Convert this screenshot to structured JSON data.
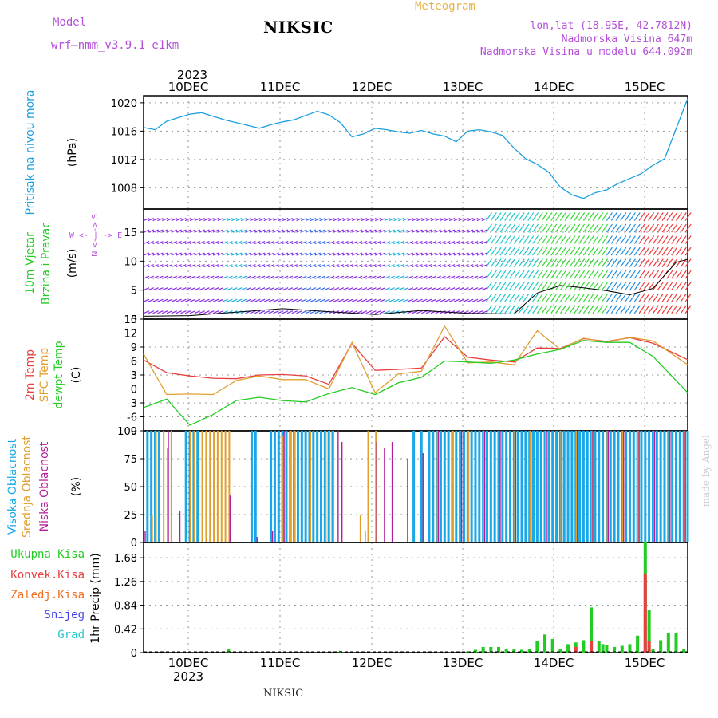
{
  "header": {
    "model_label": "Model",
    "model_name": "wrf–nmm_v3.9.1  e1km",
    "station": "NIKSIC",
    "meteogram": "Meteogram",
    "coords": "lon,lat (18.95E, 42.7812N)",
    "altitude": "Nadmorska Visina 647m",
    "model_altitude": "Nadmorska Visina u modelu 644.092m",
    "footer_station": "NIKSIC",
    "credit": "made by Angel"
  },
  "colors": {
    "pressure": "#1ca0e0",
    "temp2m": "#e84040",
    "sfctemp": "#e0a030",
    "dewpt": "#22cc22",
    "high_cloud": "#18a8e8",
    "mid_cloud": "#e0a030",
    "low_cloud": "#b0209a",
    "total_precip": "#22cc22",
    "conv_precip": "#e84040",
    "snow": "#4444ee",
    "hail": "#22c8c8",
    "wind_label": "#22cc22",
    "wind_dir": "#b44fd8"
  },
  "chart_data": [
    {
      "type": "line",
      "panel": "pressure",
      "ylabel_left": "Pritisak na nivou mora",
      "unit": "(hPa)",
      "year": "2023",
      "xticks": [
        "10DEC",
        "11DEC",
        "12DEC",
        "13DEC",
        "14DEC",
        "15DEC"
      ],
      "ylim": [
        1005,
        1021
      ],
      "yticks": [
        1008,
        1012,
        1016,
        1020
      ],
      "series": [
        {
          "name": "Pritisak na nivou mora",
          "x": [
            0,
            3,
            6,
            9,
            12,
            15,
            18,
            21,
            24,
            27,
            30,
            33,
            36,
            39,
            42,
            45,
            48,
            51,
            54,
            57,
            60,
            63,
            66,
            69,
            72,
            75,
            78,
            81,
            84,
            87,
            90,
            93,
            96,
            99,
            102,
            105,
            108,
            111,
            114,
            117,
            120,
            123,
            126,
            129,
            132,
            135,
            141
          ],
          "values": [
            1016.5,
            1016.2,
            1017.4,
            1017.9,
            1018.4,
            1018.6,
            1018.1,
            1017.6,
            1017.2,
            1016.8,
            1016.4,
            1016.9,
            1017.3,
            1017.6,
            1018.2,
            1018.8,
            1018.3,
            1017.2,
            1015.2,
            1015.6,
            1016.4,
            1016.2,
            1015.9,
            1015.7,
            1016.1,
            1015.6,
            1015.3,
            1014.5,
            1016.0,
            1016.2,
            1015.9,
            1015.4,
            1013.6,
            1012.1,
            1011.3,
            1010.2,
            1008.1,
            1007.0,
            1006.5,
            1007.3,
            1007.7,
            1008.6,
            1009.3,
            1010.0,
            1011.2,
            1012.1,
            1020.6
          ]
        }
      ]
    },
    {
      "type": "wind_barbs",
      "panel": "wind",
      "ylabel_left": "10m Vjetar Brzina i Pravac",
      "unit": "(m/s)",
      "direction_legend": "W  <- | ->  E",
      "direction_legend_ns": "N <- | -> S",
      "ylim": [
        0,
        19
      ],
      "yticks": [
        0,
        5,
        10,
        15
      ],
      "series": [
        {
          "name": "Brzina",
          "x": [
            0,
            12,
            24,
            36,
            48,
            60,
            72,
            84,
            96,
            102,
            108,
            114,
            120,
            126,
            132,
            138,
            141
          ],
          "values": [
            0.5,
            0.6,
            1.2,
            1.8,
            1.3,
            0.8,
            1.5,
            1.0,
            0.9,
            4.5,
            5.8,
            5.4,
            4.9,
            4.2,
            5.3,
            9.8,
            10.3
          ]
        }
      ]
    },
    {
      "type": "line",
      "panel": "temperature",
      "ylabel_left": [
        "2m Temp",
        "SFC Temp",
        "dewpt Temp"
      ],
      "unit": "(C)",
      "ylim": [
        -9,
        15
      ],
      "yticks": [
        -9,
        -6,
        -3,
        0,
        3,
        6,
        9,
        12,
        15
      ],
      "series": [
        {
          "name": "2m Temp",
          "x": [
            0,
            6,
            12,
            18,
            24,
            30,
            36,
            42,
            48,
            54,
            60,
            66,
            72,
            78,
            84,
            90,
            96,
            102,
            108,
            114,
            120,
            126,
            132,
            141
          ],
          "values": [
            6.2,
            3.5,
            2.8,
            2.3,
            2.2,
            3.0,
            3.1,
            2.8,
            1.0,
            9.8,
            4.0,
            4.2,
            4.5,
            11.2,
            6.8,
            6.2,
            5.8,
            8.8,
            8.7,
            10.8,
            10.2,
            11.0,
            9.8,
            6.3
          ]
        },
        {
          "name": "SFC Temp",
          "x": [
            0,
            6,
            12,
            18,
            24,
            30,
            36,
            42,
            48,
            54,
            60,
            66,
            72,
            78,
            84,
            90,
            96,
            102,
            108,
            114,
            120,
            126,
            132,
            141
          ],
          "values": [
            7.5,
            -1.2,
            -1.1,
            -1.2,
            1.8,
            2.8,
            2.0,
            2.0,
            0.0,
            10.0,
            -0.8,
            3.2,
            3.8,
            13.5,
            5.6,
            5.8,
            5.2,
            12.5,
            8.5,
            10.9,
            10.0,
            11.1,
            10.3,
            5.2
          ]
        },
        {
          "name": "dewpt Temp",
          "x": [
            0,
            6,
            12,
            18,
            24,
            30,
            36,
            42,
            48,
            54,
            60,
            66,
            72,
            78,
            84,
            90,
            96,
            102,
            108,
            114,
            120,
            126,
            132,
            141
          ],
          "values": [
            -4.0,
            -2.2,
            -7.8,
            -5.5,
            -2.5,
            -1.8,
            -2.5,
            -2.8,
            -1.0,
            0.3,
            -1.2,
            1.3,
            2.5,
            6.0,
            5.8,
            5.5,
            6.2,
            7.5,
            8.5,
            10.4,
            10.0,
            10.0,
            7.0,
            -0.8
          ]
        }
      ]
    },
    {
      "type": "bar",
      "panel": "clouds",
      "ylabel_left": [
        "Visoka Oblacnost",
        "Srednja Oblacnost",
        "Niska Oblacnost"
      ],
      "unit": "(%)",
      "ylim": [
        0,
        100
      ],
      "yticks": [
        0,
        25,
        50,
        75,
        100
      ],
      "series": [
        {
          "name": "Visoka Oblacnost",
          "x": [
            1,
            2,
            3,
            4,
            11,
            12,
            13,
            14,
            28,
            29,
            33,
            34,
            35,
            36,
            37,
            38,
            39,
            40,
            41,
            42,
            43,
            44,
            45,
            46,
            47,
            48,
            49,
            70,
            72,
            74,
            75,
            76,
            77,
            78,
            79,
            80,
            81,
            82,
            83,
            84,
            85,
            86,
            87,
            88,
            89,
            90,
            91,
            92,
            93,
            94,
            95,
            96,
            97,
            98,
            99,
            100,
            101,
            102,
            103,
            104,
            105,
            106,
            107,
            108,
            109,
            110,
            111,
            112,
            113,
            114,
            115,
            116,
            117,
            118,
            119,
            120,
            121,
            122,
            123,
            124,
            125,
            126,
            127,
            128,
            129,
            130,
            131,
            132,
            133,
            134,
            135,
            136,
            137,
            138,
            139,
            140,
            141
          ],
          "values": [
            100,
            100,
            100,
            100,
            100,
            100,
            100,
            100,
            100,
            100,
            100,
            100,
            100,
            100,
            100,
            100,
            100,
            100,
            100,
            100,
            100,
            100,
            100,
            100,
            100,
            100,
            100,
            100,
            100,
            100,
            100,
            100,
            100,
            100,
            100,
            100,
            100,
            100,
            100,
            100,
            100,
            100,
            100,
            100,
            100,
            100,
            100,
            100,
            100,
            100,
            100,
            100,
            100,
            100,
            100,
            100,
            100,
            100,
            100,
            100,
            100,
            100,
            100,
            100,
            100,
            100,
            100,
            100,
            100,
            100,
            100,
            100,
            100,
            100,
            100,
            100,
            100,
            100,
            100,
            100,
            100,
            100,
            100,
            100,
            100,
            100,
            100,
            100,
            100,
            100,
            100,
            100,
            100,
            100,
            100,
            100,
            100
          ]
        },
        {
          "name": "Srednja Oblacnost",
          "x": [
            2,
            3,
            5,
            6,
            7,
            12,
            13,
            15,
            16,
            17,
            18,
            19,
            20,
            21,
            22,
            36,
            38,
            39,
            43,
            47,
            48,
            49,
            56,
            58,
            60,
            76,
            80,
            84,
            88,
            92,
            96,
            100,
            104,
            108,
            112,
            116,
            120,
            124,
            128,
            132,
            136,
            140
          ],
          "values": [
            25,
            100,
            100,
            85,
            100,
            100,
            100,
            100,
            100,
            100,
            100,
            100,
            100,
            100,
            100,
            95,
            100,
            100,
            100,
            100,
            100,
            100,
            25,
            100,
            100,
            100,
            100,
            100,
            100,
            100,
            100,
            100,
            100,
            100,
            100,
            100,
            100,
            100,
            100,
            100,
            100,
            100
          ]
        },
        {
          "name": "Niska Oblacnost",
          "x": [
            0,
            6,
            9,
            22,
            29,
            33,
            36,
            50,
            51,
            57,
            60,
            62,
            64,
            68,
            72,
            76,
            82,
            88,
            92,
            96,
            100,
            104,
            108,
            112,
            116,
            120,
            124,
            128,
            132,
            136,
            140
          ],
          "values": [
            10,
            100,
            28,
            42,
            5,
            10,
            100,
            100,
            90,
            10,
            90,
            85,
            90,
            75,
            80,
            100,
            100,
            100,
            100,
            100,
            100,
            100,
            100,
            100,
            100,
            100,
            100,
            100,
            100,
            100,
            100
          ]
        }
      ]
    },
    {
      "type": "bar",
      "panel": "precipitation",
      "ylabel_left": [
        "Ukupna Kisa",
        "Konvek.Kisa",
        "Zaledj.Kisa",
        "Snijeg",
        "Grad"
      ],
      "unit": "1hr Precip (mm)",
      "ylim": [
        0,
        1.95
      ],
      "yticks": [
        0,
        0.42,
        0.84,
        1.26,
        1.68
      ],
      "series": [
        {
          "name": "Ukupna Kisa",
          "x": [
            22,
            51,
            84,
            86,
            88,
            90,
            92,
            94,
            96,
            98,
            100,
            102,
            104,
            106,
            108,
            110,
            112,
            114,
            116,
            118,
            119,
            120,
            122,
            124,
            126,
            128,
            130,
            131,
            132,
            134,
            136,
            138,
            140
          ],
          "values": [
            0.06,
            0.03,
            0.02,
            0.05,
            0.1,
            0.1,
            0.1,
            0.07,
            0.07,
            0.05,
            0.06,
            0.2,
            0.32,
            0.24,
            0.07,
            0.15,
            0.18,
            0.22,
            0.8,
            0.2,
            0.15,
            0.14,
            0.1,
            0.12,
            0.15,
            0.3,
            1.95,
            0.75,
            0.06,
            0.22,
            0.35,
            0.35,
            0.06
          ]
        },
        {
          "name": "Konvek.Kisa",
          "x": [
            112,
            116,
            130,
            131
          ],
          "values": [
            0.1,
            0.2,
            1.4,
            0.2
          ]
        }
      ]
    }
  ]
}
